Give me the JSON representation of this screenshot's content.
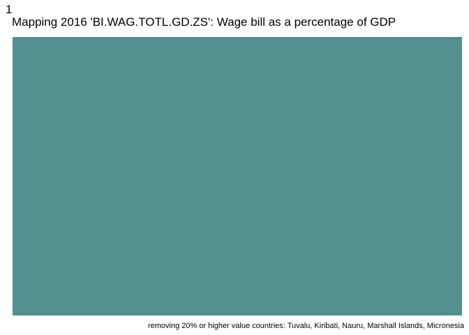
{
  "page_marker": "1",
  "title": "Mapping 2016 'BI.WAG.TOTL.GD.ZS':  Wage bill as a percentage of GDP",
  "caption": "removing 20% or higher value countries:  Tuvalu, Kiribati, Nauru, Marshall Islands, Micronesia",
  "colors": {
    "map_fill": "#528f8f",
    "background": "#ffffff",
    "text": "#000000"
  }
}
